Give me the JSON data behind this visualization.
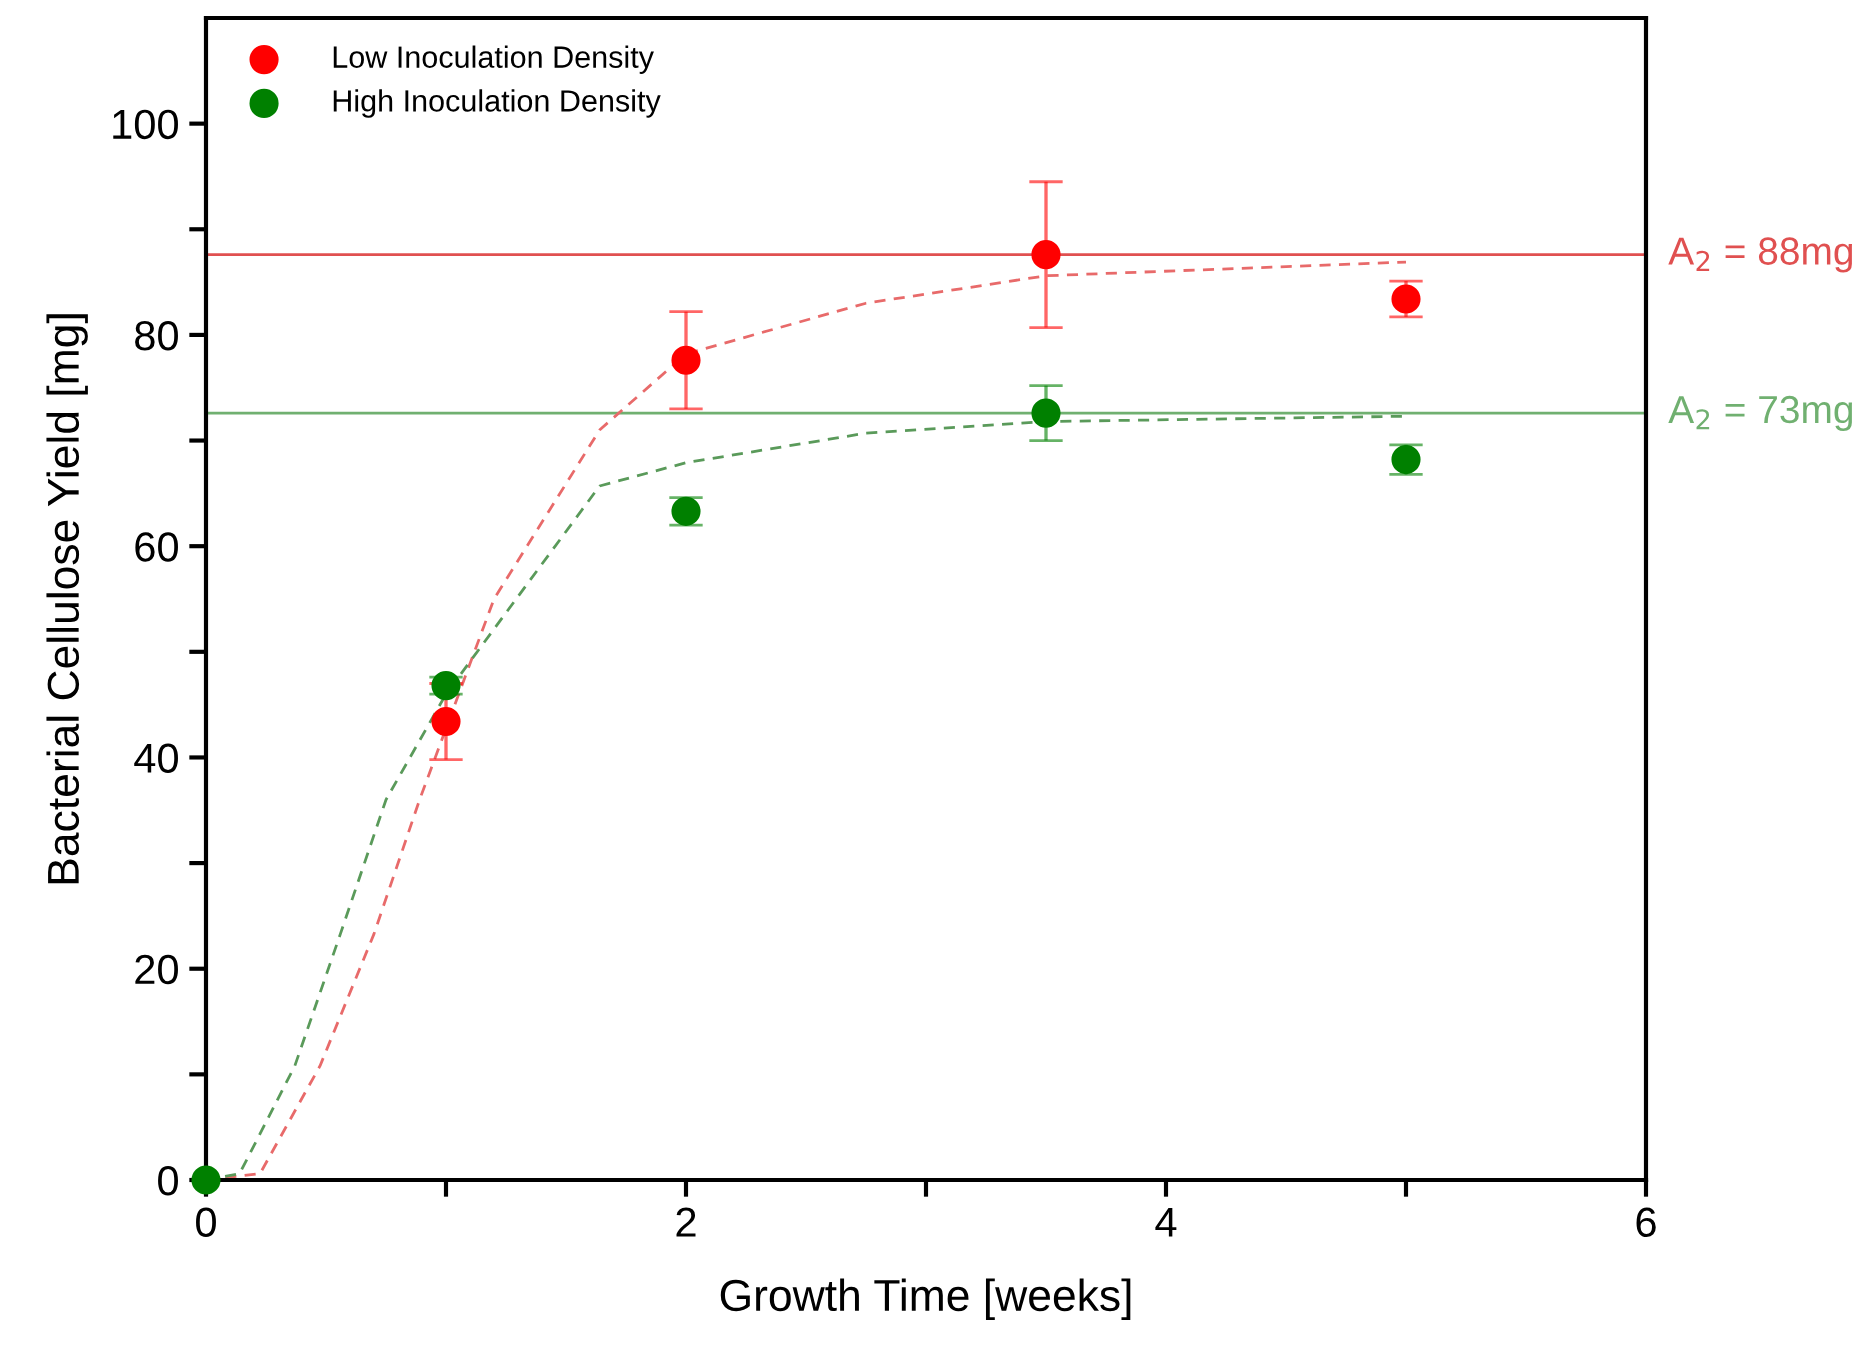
{
  "chart_data": {
    "type": "scatter",
    "xlabel": "Growth Time [weeks]",
    "ylabel": "Bacterial Cellulose Yield [mg]",
    "xlim": [
      0,
      6
    ],
    "ylim": [
      0,
      110
    ],
    "xticks": [
      0,
      {
        "value": 1,
        "label": null
      },
      2,
      {
        "value": 3,
        "label": null
      },
      4,
      {
        "value": 5,
        "label": null
      },
      6
    ],
    "yticks": [
      0,
      {
        "value": 10,
        "label": null
      },
      20,
      {
        "value": 30,
        "label": null
      },
      40,
      {
        "value": 50,
        "label": null
      },
      60,
      {
        "value": 70,
        "label": null
      },
      80,
      {
        "value": 90,
        "label": null
      },
      100
    ],
    "grid": false,
    "legend": "top left",
    "marker": "circle",
    "series": [
      {
        "name": "Low Inoculation Density",
        "color": "#ff0000",
        "x": [
          1,
          2,
          3.5,
          5
        ],
        "values": [
          43.4,
          77.6,
          87.6,
          83.4
        ],
        "errors": [
          3.6,
          4.6,
          6.9,
          1.7
        ]
      },
      {
        "name": "High Inoculation Density",
        "color": "#008000",
        "x": [
          0,
          1,
          2,
          3.5,
          5
        ],
        "values": [
          0,
          46.8,
          63.3,
          72.6,
          68.2
        ],
        "errors": [
          null,
          0.8,
          1.3,
          2.6,
          1.4
        ]
      },
      {
        "type": "line",
        "line_style": "dashed",
        "marker": "none",
        "color": "#e86a6a",
        "x": [
          0,
          0.225,
          0.475,
          0.7,
          0.89,
          1.2,
          1.64,
          2.0,
          2.75,
          3.5,
          5.0
        ],
        "values": [
          0,
          0.6,
          10.8,
          23.3,
          36,
          55,
          71.0,
          78.2,
          83,
          85.6,
          86.9
        ]
      },
      {
        "type": "line",
        "line_style": "dashed",
        "marker": "none",
        "color": "#5a9a5a",
        "x": [
          0,
          0.14,
          0.37,
          0.56,
          0.75,
          1.0,
          1.64,
          2.0,
          2.75,
          3.5,
          5.0
        ],
        "values": [
          0,
          0.6,
          10.8,
          23.3,
          36,
          46,
          65.7,
          67.9,
          70.7,
          71.8,
          72.3
        ]
      }
    ],
    "ref_lines": [
      {
        "axis": "y",
        "value": 87.6,
        "label": "A$_{2}$ = 88mg",
        "color": "#e05050"
      },
      {
        "axis": "y",
        "value": 72.6,
        "label": "A$_{2}$ = 73mg",
        "color": "#70b070"
      }
    ]
  }
}
